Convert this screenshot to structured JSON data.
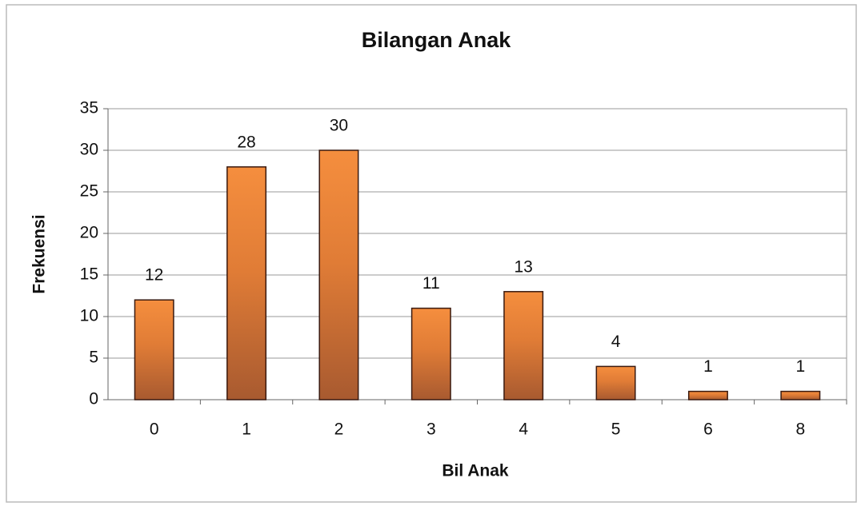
{
  "chart_data": {
    "type": "bar",
    "title": "Bilangan Anak",
    "x_label": "Bil Anak",
    "y_label": "Frekuensi",
    "categories": [
      "0",
      "1",
      "2",
      "3",
      "4",
      "5",
      "6",
      "8"
    ],
    "values": [
      12,
      28,
      30,
      11,
      13,
      4,
      1,
      1
    ],
    "color": "#f58e3e",
    "ylim": [
      0,
      35
    ],
    "yticks": [
      0,
      5,
      10,
      15,
      20,
      25,
      30,
      35
    ],
    "grid": true
  }
}
